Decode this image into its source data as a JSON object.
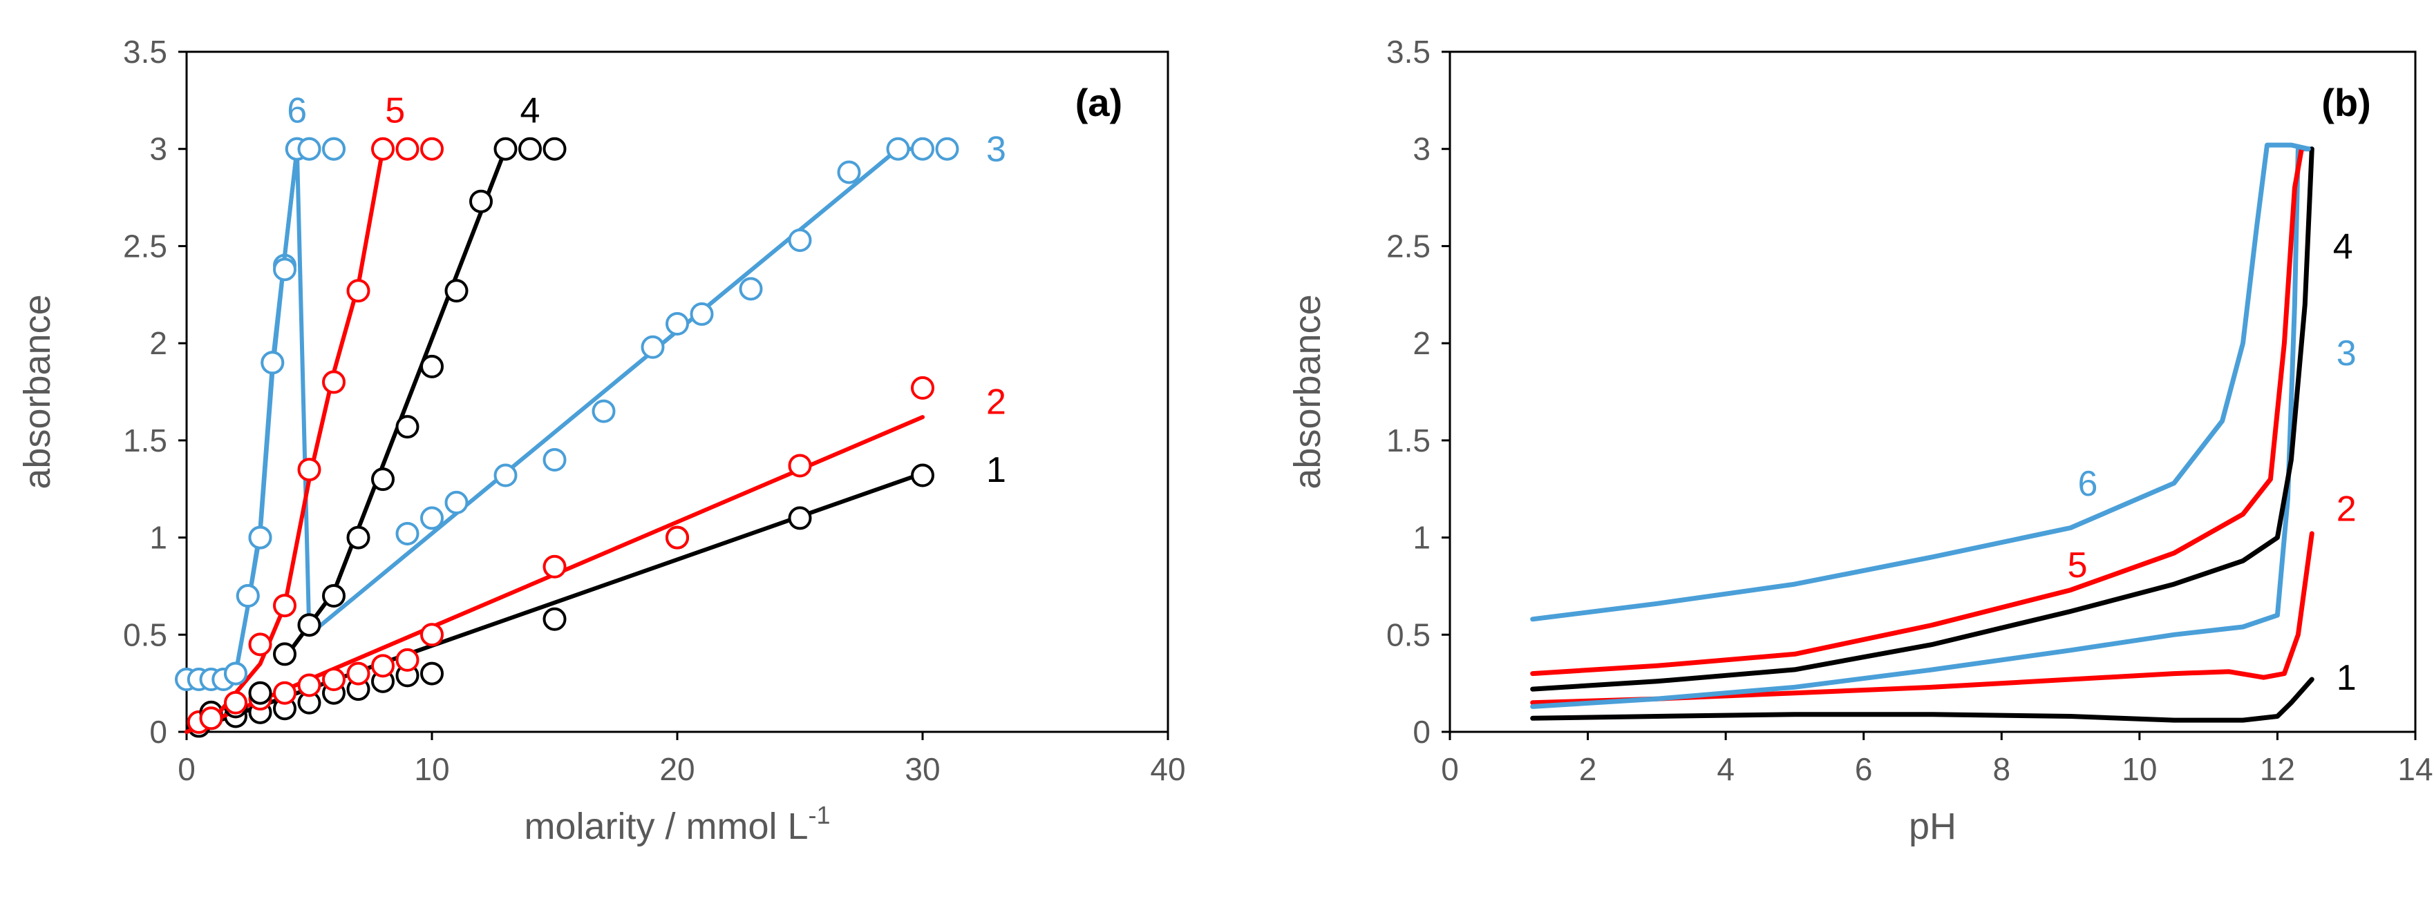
{
  "colors": {
    "black": "#000000",
    "red": "#ff0000",
    "blue": "#4a9fd8",
    "axis_text": "#595959"
  },
  "chart_data": [
    {
      "type": "scatter",
      "panel_label": "(a)",
      "xlabel": "molarity  / mmol L",
      "xlabel_superscript": "-1",
      "ylabel": "absorbance",
      "xlim": [
        0,
        40
      ],
      "ylim": [
        0,
        3.5
      ],
      "x_ticks": [
        0,
        10,
        20,
        30,
        40
      ],
      "y_ticks": [
        0,
        0.5,
        1,
        1.5,
        2,
        2.5,
        3,
        3.5
      ],
      "x_tick_labels": [
        "0",
        "10",
        "20",
        "30",
        "40"
      ],
      "y_tick_labels": [
        "0",
        "0.5",
        "1",
        "1.5",
        "2",
        "2.5",
        "3",
        "3.5"
      ],
      "grid": false,
      "series": [
        {
          "name": "1",
          "color": "#000000",
          "points": [
            [
              0.5,
              0.03
            ],
            [
              1,
              0.07
            ],
            [
              2,
              0.08
            ],
            [
              3,
              0.1
            ],
            [
              4,
              0.12
            ],
            [
              5,
              0.15
            ],
            [
              6,
              0.2
            ],
            [
              7,
              0.22
            ],
            [
              8,
              0.26
            ],
            [
              9,
              0.29
            ],
            [
              10,
              0.3
            ],
            [
              15,
              0.58
            ],
            [
              20,
              1.0
            ],
            [
              25,
              1.1
            ],
            [
              30,
              1.32
            ]
          ],
          "fit": [
            [
              0,
              0
            ],
            [
              30,
              1.33
            ]
          ],
          "label_at": [
            33,
            1.35
          ]
        },
        {
          "name": "2",
          "color": "#ff0000",
          "points": [
            [
              0.5,
              0.05
            ],
            [
              1,
              0.1
            ],
            [
              2,
              0.13
            ],
            [
              3,
              0.17
            ],
            [
              4,
              0.2
            ],
            [
              5,
              0.24
            ],
            [
              6,
              0.27
            ],
            [
              7,
              0.3
            ],
            [
              8,
              0.34
            ],
            [
              9,
              0.37
            ],
            [
              10,
              0.5
            ],
            [
              15,
              0.85
            ],
            [
              20,
              1.0
            ],
            [
              25,
              1.37
            ],
            [
              30,
              1.77
            ]
          ],
          "fit": [
            [
              0,
              0
            ],
            [
              30,
              1.62
            ]
          ],
          "label_at": [
            33,
            1.7
          ]
        },
        {
          "name": "3",
          "color": "#4a9fd8",
          "points": [
            [
              0,
              0.27
            ],
            [
              0.5,
              0.27
            ],
            [
              1,
              0.27
            ],
            [
              1.5,
              0.27
            ],
            [
              2,
              0.3
            ],
            [
              2.5,
              0.7
            ],
            [
              3,
              1.0
            ],
            [
              3.5,
              1.9
            ],
            [
              4,
              2.4
            ],
            [
              4.5,
              3.0
            ],
            [
              5,
              3.0
            ],
            [
              6,
              3.0
            ],
            [
              9,
              1.02
            ],
            [
              10,
              1.1
            ],
            [
              11,
              1.18
            ],
            [
              13,
              1.32
            ],
            [
              15,
              1.4
            ],
            [
              17,
              1.65
            ],
            [
              19,
              1.98
            ],
            [
              20,
              2.1
            ],
            [
              21,
              2.15
            ],
            [
              23,
              2.28
            ],
            [
              25,
              2.53
            ],
            [
              27,
              2.88
            ],
            [
              29,
              3.0
            ],
            [
              30,
              3.0
            ],
            [
              31,
              3.0
            ]
          ],
          "fit": [
            [
              0,
              0.27
            ],
            [
              2,
              0.3
            ],
            [
              2.5,
              0.65
            ],
            [
              3,
              1.02
            ],
            [
              3.5,
              1.85
            ],
            [
              4,
              2.45
            ],
            [
              4.5,
              3.0
            ],
            [
              5,
              0.5
            ],
            [
              29,
              3.0
            ],
            [
              30,
              3.0
            ]
          ],
          "label_at": [
            33,
            3.0
          ]
        },
        {
          "name": "4",
          "color": "#000000",
          "points": [
            [
              1,
              0.1
            ],
            [
              2,
              0.13
            ],
            [
              3,
              0.2
            ],
            [
              4,
              0.4
            ],
            [
              5,
              0.55
            ],
            [
              6,
              0.7
            ],
            [
              7,
              1.0
            ],
            [
              8,
              1.3
            ],
            [
              9,
              1.57
            ],
            [
              10,
              1.88
            ],
            [
              11,
              2.27
            ],
            [
              12,
              2.73
            ],
            [
              13,
              3.0
            ],
            [
              14,
              3.0
            ],
            [
              15,
              3.0
            ]
          ],
          "fit": [
            [
              4,
              0.38
            ],
            [
              6,
              0.72
            ],
            [
              13,
              3.0
            ]
          ],
          "label_at": [
            14,
            3.2
          ]
        },
        {
          "name": "5",
          "color": "#ff0000",
          "points": [
            [
              1,
              0.07
            ],
            [
              2,
              0.15
            ],
            [
              3,
              0.45
            ],
            [
              4,
              0.65
            ],
            [
              5,
              1.35
            ],
            [
              6,
              1.8
            ],
            [
              7,
              2.27
            ],
            [
              8,
              3.0
            ],
            [
              9,
              3.0
            ],
            [
              10,
              3.0
            ]
          ],
          "fit": [
            [
              1,
              0.05
            ],
            [
              2,
              0.2
            ],
            [
              3,
              0.35
            ],
            [
              4,
              0.65
            ],
            [
              5,
              1.3
            ],
            [
              6,
              1.85
            ],
            [
              7,
              2.3
            ],
            [
              8,
              3.0
            ]
          ],
          "label_at": [
            8.5,
            3.2
          ]
        },
        {
          "name": "6",
          "color": "#4a9fd8",
          "points": [
            [
              2,
              0.3
            ],
            [
              2.5,
              0.7
            ],
            [
              3,
              1.0
            ],
            [
              3.5,
              1.9
            ],
            [
              4,
              2.38
            ],
            [
              4.5,
              3.0
            ],
            [
              5,
              3.0
            ],
            [
              6,
              3.0
            ]
          ],
          "fit": [
            [
              2,
              0.3
            ],
            [
              2.5,
              0.65
            ],
            [
              3,
              1.05
            ],
            [
              3.5,
              1.9
            ],
            [
              4,
              2.45
            ],
            [
              4.5,
              3.0
            ]
          ],
          "label_at": [
            4.5,
            3.2
          ]
        }
      ]
    },
    {
      "type": "line",
      "panel_label": "(b)",
      "xlabel": "pH",
      "ylabel": "absorbance",
      "xlim": [
        0,
        14
      ],
      "ylim": [
        0,
        3.5
      ],
      "x_ticks": [
        0,
        2,
        4,
        6,
        8,
        10,
        12,
        14
      ],
      "y_ticks": [
        0,
        0.5,
        1,
        1.5,
        2,
        2.5,
        3,
        3.5
      ],
      "x_tick_labels": [
        "0",
        "2",
        "4",
        "6",
        "8",
        "10",
        "12",
        "14"
      ],
      "y_tick_labels": [
        "0",
        "0.5",
        "1",
        "1.5",
        "2",
        "2.5",
        "3",
        "3.5"
      ],
      "grid": false,
      "series": [
        {
          "name": "1",
          "color": "#000000",
          "points": [
            [
              1.2,
              0.07
            ],
            [
              3,
              0.08
            ],
            [
              5,
              0.09
            ],
            [
              7,
              0.09
            ],
            [
              9,
              0.08
            ],
            [
              10.5,
              0.06
            ],
            [
              11.5,
              0.06
            ],
            [
              12.0,
              0.08
            ],
            [
              12.2,
              0.15
            ],
            [
              12.5,
              0.27
            ]
          ],
          "label_at": [
            13.0,
            0.28
          ]
        },
        {
          "name": "2",
          "color": "#ff0000",
          "points": [
            [
              1.2,
              0.15
            ],
            [
              3,
              0.17
            ],
            [
              5,
              0.2
            ],
            [
              7,
              0.23
            ],
            [
              9,
              0.27
            ],
            [
              10.5,
              0.3
            ],
            [
              11.3,
              0.31
            ],
            [
              11.8,
              0.28
            ],
            [
              12.1,
              0.3
            ],
            [
              12.3,
              0.5
            ],
            [
              12.5,
              1.02
            ]
          ],
          "label_at": [
            13.0,
            1.15
          ]
        },
        {
          "name": "3",
          "color": "#4a9fd8",
          "points": [
            [
              1.2,
              0.13
            ],
            [
              3,
              0.17
            ],
            [
              5,
              0.23
            ],
            [
              7,
              0.32
            ],
            [
              9,
              0.42
            ],
            [
              10.5,
              0.5
            ],
            [
              11.5,
              0.54
            ],
            [
              12.0,
              0.6
            ],
            [
              12.15,
              1.2
            ],
            [
              12.25,
              2.2
            ],
            [
              12.3,
              3.0
            ],
            [
              12.5,
              3.0
            ]
          ],
          "label_at": [
            13.0,
            1.95
          ]
        },
        {
          "name": "4",
          "color": "#000000",
          "points": [
            [
              1.2,
              0.22
            ],
            [
              3,
              0.26
            ],
            [
              5,
              0.32
            ],
            [
              7,
              0.45
            ],
            [
              9,
              0.62
            ],
            [
              10.5,
              0.76
            ],
            [
              11.5,
              0.88
            ],
            [
              12.0,
              1.0
            ],
            [
              12.2,
              1.4
            ],
            [
              12.4,
              2.2
            ],
            [
              12.5,
              3.0
            ]
          ],
          "label_at": [
            12.95,
            2.5
          ]
        },
        {
          "name": "5",
          "color": "#ff0000",
          "points": [
            [
              1.2,
              0.3
            ],
            [
              3,
              0.34
            ],
            [
              5,
              0.4
            ],
            [
              7,
              0.55
            ],
            [
              9,
              0.73
            ],
            [
              10.5,
              0.92
            ],
            [
              11.5,
              1.12
            ],
            [
              11.9,
              1.3
            ],
            [
              12.1,
              2.0
            ],
            [
              12.25,
              2.8
            ],
            [
              12.35,
              3.0
            ]
          ],
          "label_at": [
            9.1,
            0.86
          ]
        },
        {
          "name": "6",
          "color": "#4a9fd8",
          "points": [
            [
              1.2,
              0.58
            ],
            [
              3,
              0.66
            ],
            [
              5,
              0.76
            ],
            [
              7,
              0.9
            ],
            [
              9,
              1.05
            ],
            [
              10.5,
              1.28
            ],
            [
              11.2,
              1.6
            ],
            [
              11.5,
              2.0
            ],
            [
              11.7,
              2.6
            ],
            [
              11.85,
              3.02
            ],
            [
              12.2,
              3.02
            ],
            [
              12.45,
              3.0
            ]
          ],
          "label_at": [
            9.25,
            1.28
          ]
        }
      ]
    }
  ]
}
